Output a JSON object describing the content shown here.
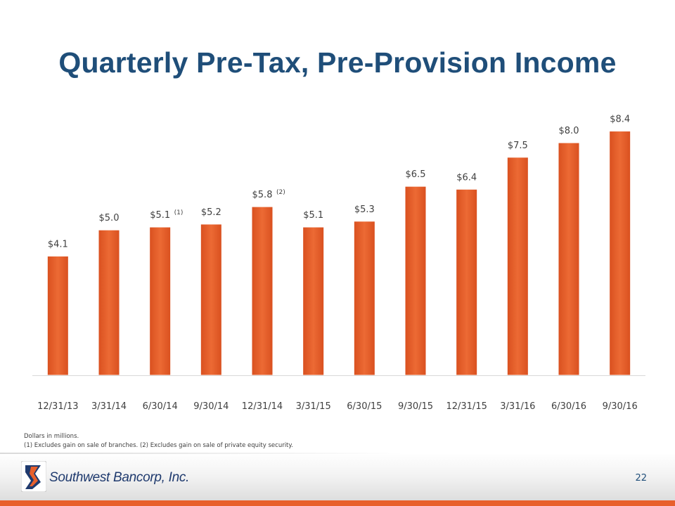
{
  "title": "Quarterly Pre-Tax, Pre-Provision Income",
  "chart_data": {
    "type": "bar",
    "categories": [
      "12/31/13",
      "3/31/14",
      "6/30/14",
      "9/30/14",
      "12/31/14",
      "3/31/15",
      "6/30/15",
      "9/30/15",
      "12/31/15",
      "3/31/16",
      "6/30/16",
      "9/30/16"
    ],
    "values": [
      4.1,
      5.0,
      5.1,
      5.2,
      5.8,
      5.1,
      5.3,
      6.5,
      6.4,
      7.5,
      8.0,
      8.4
    ],
    "data_labels": [
      "$4.1",
      "$5.0",
      "$5.1",
      "$5.2",
      "$5.8",
      "$5.1",
      "$5.3",
      "$6.5",
      "$6.4",
      "$7.5",
      "$8.0",
      "$8.4"
    ],
    "label_notes": [
      "",
      "",
      "(1)",
      "",
      "(2)",
      "",
      "",
      "",
      "",
      "",
      "",
      ""
    ],
    "ylim": [
      0,
      8.8
    ],
    "xlabel": "",
    "ylabel": "",
    "bar_color": "#e8602c",
    "bar_edge_color": "#ffffff",
    "axis_color": "#d9d9d9"
  },
  "footnotes": {
    "units": "Dollars in millions.",
    "notes": "(1) Excludes gain on sale of branches.  (2) Excludes gain on sale of private equity security."
  },
  "footer": {
    "company": "Southwest Bancorp, Inc.",
    "page_number": "22",
    "accent_color": "#e8602c",
    "logo_blue": "#1f3a6e"
  }
}
